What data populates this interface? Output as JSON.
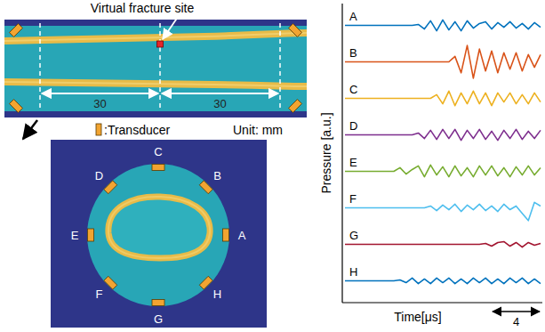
{
  "diagram": {
    "annotation": "Virtual fracture site",
    "distances": [
      30,
      30
    ],
    "transducer_key": ":Transducer",
    "unit_note": "Unit: mm",
    "transducers": [
      "A",
      "B",
      "C",
      "D",
      "E",
      "F",
      "G",
      "H"
    ]
  },
  "chart_data": {
    "type": "line",
    "y_label": "Pressure [a.u.]",
    "x_label": "Time[μs]",
    "scale_bar": 4,
    "tick_labels": false,
    "x": [
      0,
      0.5,
      1,
      1.5,
      2,
      2.5,
      3,
      3.5,
      4,
      4.5,
      5,
      5.5,
      6,
      6.5,
      7,
      7.5,
      8,
      8.5,
      9,
      9.5,
      10,
      10.5,
      11,
      11.5,
      12,
      12.5,
      13,
      13.5,
      14,
      14.5,
      15,
      15.5,
      16
    ],
    "xlim": [
      0,
      16
    ],
    "ylim": [
      -1,
      1
    ],
    "series": [
      {
        "name": "A",
        "color": "#0072bd",
        "values": [
          0,
          0,
          0,
          0,
          0,
          0,
          0,
          0,
          0,
          0,
          0,
          0,
          0.05,
          -0.2,
          0.25,
          -0.3,
          0.3,
          -0.25,
          0.2,
          -0.3,
          0.25,
          -0.15,
          0.1,
          0.2,
          -0.2,
          0.15,
          -0.1,
          0.2,
          -0.15,
          0.1,
          -0.2,
          0.15,
          -0.1
        ]
      },
      {
        "name": "B",
        "color": "#d95319",
        "values": [
          0,
          0,
          0,
          0,
          0,
          0,
          0,
          0,
          0,
          0,
          0,
          0,
          0,
          0,
          0,
          0,
          0,
          0,
          0.3,
          -0.6,
          0.9,
          -0.9,
          0.7,
          -0.5,
          0.6,
          -0.6,
          0.5,
          -0.4,
          0.5,
          -0.5,
          0.4,
          -0.3,
          0.4
        ]
      },
      {
        "name": "C",
        "color": "#edb120",
        "values": [
          0,
          0,
          0,
          0,
          0,
          0,
          0,
          0,
          0,
          0,
          0,
          0,
          0,
          0,
          0,
          0.2,
          -0.3,
          0.4,
          -0.4,
          0.3,
          -0.3,
          0.4,
          -0.3,
          0.3,
          -0.4,
          0.3,
          -0.2,
          0.3,
          -0.3,
          0.2,
          -0.3,
          0.3,
          -0.2
        ]
      },
      {
        "name": "D",
        "color": "#7e2f8e",
        "values": [
          0,
          0,
          0,
          0,
          0,
          0,
          0,
          0,
          0,
          0,
          0,
          0,
          0.1,
          -0.2,
          0.25,
          -0.25,
          0.3,
          -0.2,
          0.3,
          -0.3,
          0.25,
          -0.2,
          0.3,
          -0.25,
          0.2,
          -0.3,
          0.25,
          -0.2,
          0.3,
          -0.25,
          0.2,
          -0.2,
          0.25
        ]
      },
      {
        "name": "E",
        "color": "#77ac30",
        "values": [
          0,
          0,
          0,
          0,
          0,
          0,
          0,
          0,
          0,
          0.2,
          -0.15,
          0.1,
          0.3,
          -0.3,
          0.35,
          -0.2,
          0.25,
          -0.3,
          0.3,
          -0.25,
          0.2,
          -0.3,
          0.3,
          -0.2,
          0.3,
          -0.25,
          0.2,
          -0.3,
          0.25,
          -0.2,
          0.3,
          -0.2,
          0.2
        ]
      },
      {
        "name": "F",
        "color": "#4dbeee",
        "values": [
          0,
          0,
          0,
          0,
          0,
          0,
          0,
          0,
          0,
          0,
          0,
          0,
          0,
          0,
          0.1,
          -0.15,
          0.15,
          -0.1,
          0.2,
          -0.2,
          0.15,
          -0.1,
          0.2,
          -0.15,
          0.1,
          -0.2,
          0.2,
          -0.1,
          0.1,
          -0.3,
          -0.7,
          0.3,
          0.1
        ]
      },
      {
        "name": "G",
        "color": "#a2142f",
        "values": [
          0,
          0,
          0,
          0,
          0,
          0,
          0,
          0,
          0,
          0,
          0,
          0,
          0,
          0,
          0,
          0,
          0,
          0,
          0,
          0,
          0,
          0,
          0,
          0.05,
          -0.1,
          0.1,
          0.15,
          -0.1,
          0.1,
          -0.15,
          0.1,
          -0.05,
          0.05
        ]
      },
      {
        "name": "H",
        "color": "#0072bd",
        "values": [
          0,
          0,
          0,
          0,
          0,
          0,
          0,
          0,
          0,
          0.05,
          -0.1,
          0.15,
          -0.15,
          0.1,
          -0.15,
          0.15,
          -0.1,
          0.15,
          -0.15,
          0.1,
          -0.15,
          0.15,
          -0.1,
          0.15,
          -0.15,
          0.1,
          -0.15,
          0.15,
          -0.1,
          0.15,
          -0.15,
          0.1,
          -0.15
        ]
      }
    ]
  }
}
